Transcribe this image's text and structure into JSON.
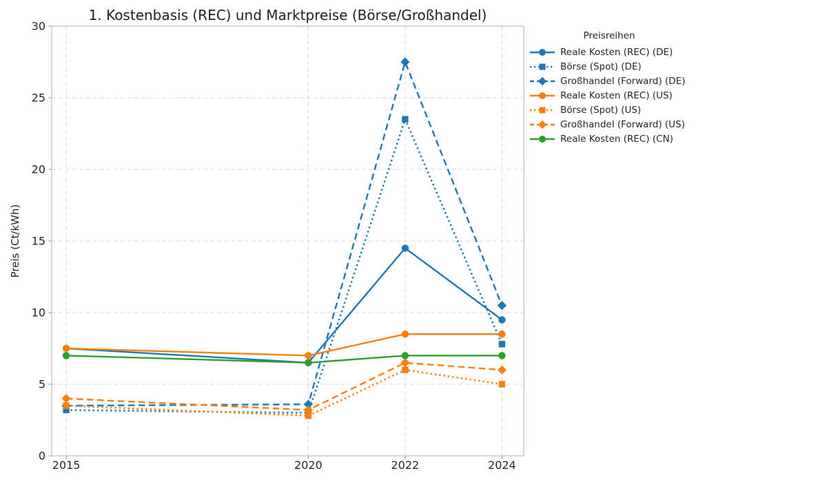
{
  "chart_data": {
    "type": "line",
    "title": "1. Kostenbasis (REC) und Marktpreise (Börse/Großhandel)",
    "xlabel": "",
    "ylabel": "Preis (Ct/kWh)",
    "x": [
      2015,
      2020,
      2022,
      2024
    ],
    "xticks": [
      "2015",
      "2020",
      "2022",
      "2024"
    ],
    "yticks": [
      "0",
      "5",
      "10",
      "15",
      "20",
      "25",
      "30"
    ],
    "ylim": [
      0,
      30
    ],
    "xlim": [
      2014.7,
      2024.45
    ],
    "grid": "dashed",
    "legend": {
      "title": "Preisreihen",
      "position": "outside-upper-right"
    },
    "series": [
      {
        "name": "Reale Kosten (REC) (DE)",
        "color": "#1f77b4",
        "line": "solid",
        "marker": "circle",
        "values": [
          7.5,
          6.5,
          14.5,
          9.5
        ]
      },
      {
        "name": "Börse (Spot) (DE)",
        "color": "#1f77b4",
        "line": "dotted",
        "marker": "square",
        "values": [
          3.2,
          3.0,
          23.5,
          7.8
        ]
      },
      {
        "name": "Großhandel (Forward) (DE)",
        "color": "#1f77b4",
        "line": "dashed",
        "marker": "diamond",
        "values": [
          3.5,
          3.6,
          27.5,
          10.5
        ]
      },
      {
        "name": "Reale Kosten (REC) (US)",
        "color": "#ff7f0e",
        "line": "solid",
        "marker": "circle",
        "values": [
          7.5,
          7.0,
          8.5,
          8.5
        ]
      },
      {
        "name": "Börse (Spot) (US)",
        "color": "#ff7f0e",
        "line": "dotted",
        "marker": "square",
        "values": [
          3.5,
          2.8,
          6.0,
          5.0
        ]
      },
      {
        "name": "Großhandel (Forward) (US)",
        "color": "#ff7f0e",
        "line": "dashed",
        "marker": "diamond",
        "values": [
          4.0,
          3.2,
          6.5,
          6.0
        ]
      },
      {
        "name": "Reale Kosten (REC) (CN)",
        "color": "#2ca02c",
        "line": "solid",
        "marker": "circle",
        "values": [
          7.0,
          6.5,
          7.0,
          7.0
        ]
      }
    ],
    "colors": {
      "blue": "#1f77b4",
      "orange": "#ff7f0e",
      "green": "#2ca02c",
      "grid": "#d9d9d9",
      "spine": "#c6c6c6",
      "tick_text": "#262626"
    }
  }
}
